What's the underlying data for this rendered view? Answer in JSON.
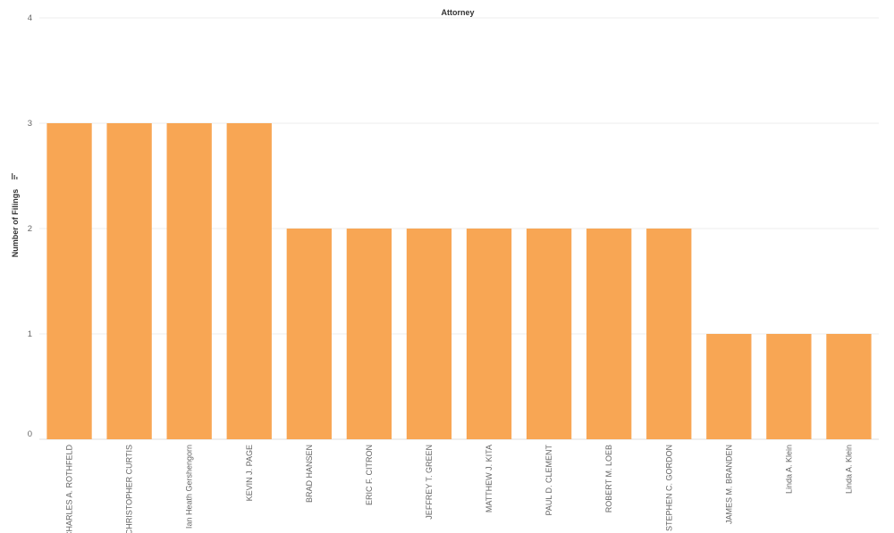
{
  "chart_data": {
    "type": "bar",
    "title": "Attorney",
    "xlabel": "",
    "ylabel": "Number of Filings",
    "ylim": [
      0,
      4
    ],
    "yticks": [
      0,
      1,
      2,
      3,
      4
    ],
    "grid": true,
    "bar_color": "#F8A654",
    "sort_icon": "sort-descending-icon",
    "categories": [
      "CHARLES A. ROTHFELD",
      "CHRISTOPHER CURTIS",
      "Ian Heath Gershengorn",
      "KEVIN J. PAGE",
      "BRAD HANSEN",
      "ERIC F. CITRON",
      "JEFFREY T. GREEN",
      "MATTHEW J. KITA",
      "PAUL D. CLEMENT",
      "ROBERT M. LOEB",
      "STEPHEN C. GORDON",
      "JAMES M. BRANDEN",
      "Linda A. Klein",
      "Linda A. Klein"
    ],
    "values": [
      3,
      3,
      3,
      3,
      2,
      2,
      2,
      2,
      2,
      2,
      2,
      1,
      1,
      1
    ]
  }
}
